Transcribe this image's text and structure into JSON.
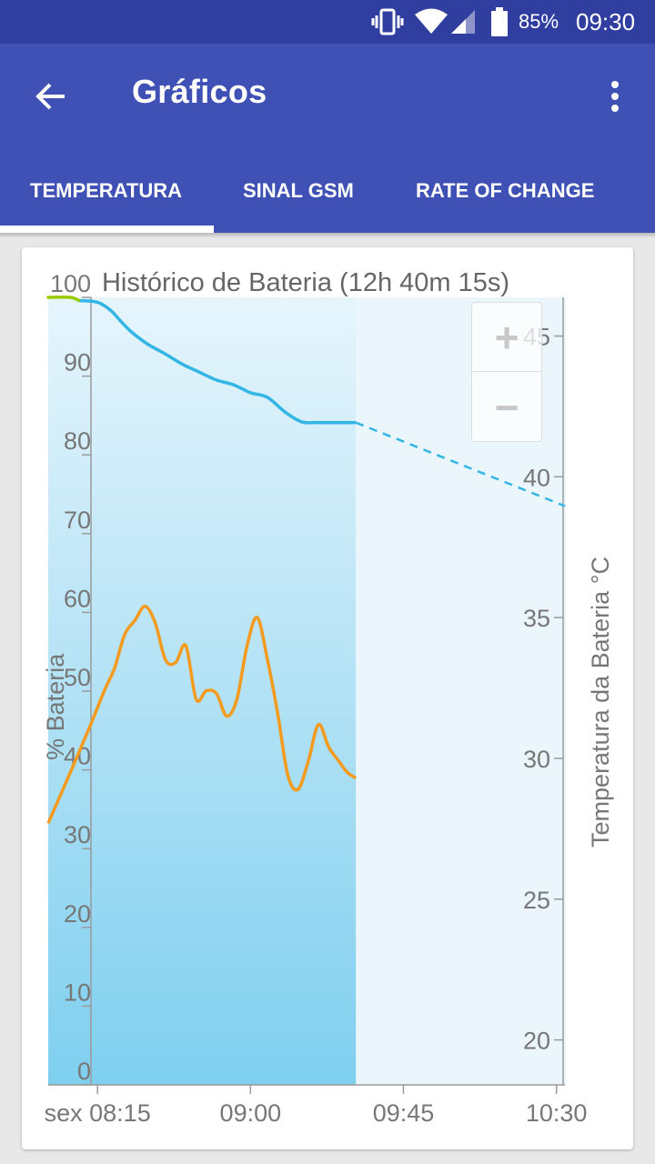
{
  "status_bar": {
    "battery_percent": "85%",
    "time": "09:30",
    "icons": [
      "vibrate-icon",
      "wifi-icon",
      "cell-signal-icon",
      "battery-icon"
    ]
  },
  "app_bar": {
    "title": "Gráficos",
    "back_icon": "arrow-back-icon",
    "menu_icon": "more-vert-icon"
  },
  "tabs": [
    {
      "label": "TEMPERATURA",
      "selected": true
    },
    {
      "label": "SINAL GSM",
      "selected": false
    },
    {
      "label": "RATE OF CHANGE",
      "selected": false
    }
  ],
  "zoom": {
    "in_label": "+",
    "out_label": "−"
  },
  "colors": {
    "status_bar": "#303f9f",
    "app_bar": "#3f51b5",
    "battery_line": "#33b5e5",
    "charging_line": "#99cc00",
    "temperature_line": "#f49a1f"
  },
  "chart_data": {
    "type": "line",
    "title": "Histórico de Bateria (12h 40m 15s)",
    "ylabel": "% Bateria",
    "y2label": "Temperatura da Bateria °C",
    "x_tick_labels": [
      "sex 08:15",
      "09:00",
      "09:45",
      "10:30"
    ],
    "x_tick_minutes": [
      0,
      45,
      90,
      135
    ],
    "xlim_minutes": [
      -14.5,
      137.5
    ],
    "ylim": [
      0,
      100
    ],
    "y_ticks": [
      0,
      10,
      20,
      30,
      40,
      50,
      60,
      70,
      80,
      90,
      100
    ],
    "y2lim": [
      17.5,
      46.5
    ],
    "y2_ticks": [
      20,
      25,
      30,
      35,
      40,
      45
    ],
    "now_minutes": 76,
    "series": [
      {
        "name": "charging",
        "axis": "left",
        "x": [
          -14.5,
          -8,
          -5.5
        ],
        "values": [
          100,
          100,
          99.6
        ]
      },
      {
        "name": "battery",
        "axis": "left",
        "x": [
          -5.5,
          -1.5,
          1,
          4,
          7,
          10,
          15,
          20,
          25,
          30,
          35,
          40,
          45,
          50,
          55,
          60,
          65,
          70,
          76
        ],
        "values": [
          99.6,
          99.5,
          99.2,
          98.3,
          96.9,
          95.6,
          94,
          92.8,
          91.5,
          90.5,
          89.5,
          88.9,
          87.9,
          87.3,
          85.5,
          84.2,
          84.1,
          84.1,
          84.1
        ]
      },
      {
        "name": "battery_estimate",
        "axis": "left",
        "dashed": true,
        "x": [
          76,
          137.5
        ],
        "values": [
          84.1,
          73.5
        ]
      },
      {
        "name": "temperature",
        "axis": "right",
        "x": [
          -14.5,
          -8,
          -2,
          2,
          5,
          8,
          11,
          14,
          17,
          20,
          23,
          26,
          29,
          32,
          35,
          38,
          41,
          44,
          47,
          50,
          53,
          56,
          59,
          62,
          65,
          68,
          71,
          73.5,
          76
        ],
        "values": [
          27.7,
          29.5,
          31.2,
          32.4,
          33.2,
          34.4,
          34.9,
          35.4,
          34.8,
          33.5,
          33.4,
          34.0,
          32.1,
          32.4,
          32.3,
          31.5,
          32.1,
          34.0,
          35.0,
          33.5,
          31.6,
          29.4,
          28.9,
          29.9,
          31.2,
          30.4,
          29.9,
          29.5,
          29.3
        ]
      }
    ]
  }
}
